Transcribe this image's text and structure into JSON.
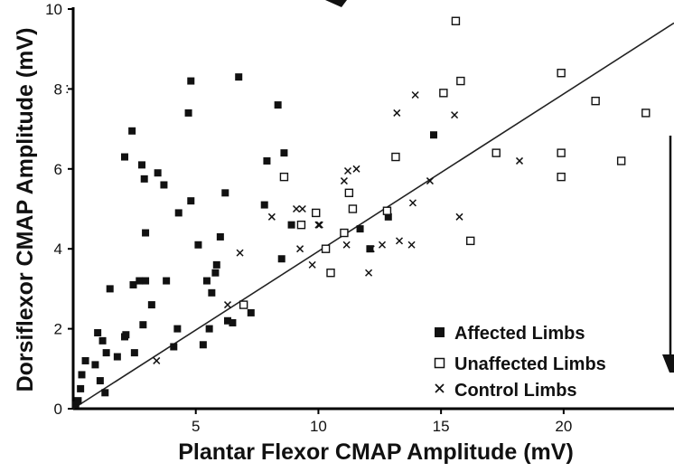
{
  "chart_data": {
    "type": "scatter",
    "title": "",
    "xlabel": "Plantar Flexor CMAP Amplitude (mV)",
    "ylabel": "Dorsiflexor CMAP Amplitude (mV)",
    "xlim": [
      0,
      24.5
    ],
    "ylim": [
      0,
      10
    ],
    "xticks": [
      5,
      10,
      15,
      20
    ],
    "yticks": [
      0,
      2,
      4,
      6,
      8,
      10
    ],
    "grid": false,
    "legend_position": "bottom-right",
    "series": [
      {
        "name": "Affected Limbs",
        "marker": "filled-square",
        "color": "#111111",
        "points": [
          [
            0.1,
            0.1
          ],
          [
            0.2,
            0.2
          ],
          [
            0.3,
            0.5
          ],
          [
            0.35,
            0.85
          ],
          [
            0.5,
            1.2
          ],
          [
            0.9,
            1.1
          ],
          [
            1.0,
            1.9
          ],
          [
            1.1,
            0.7
          ],
          [
            1.2,
            1.7
          ],
          [
            1.3,
            0.4
          ],
          [
            1.35,
            1.4
          ],
          [
            1.5,
            3.0
          ],
          [
            1.8,
            1.3
          ],
          [
            2.1,
            1.8
          ],
          [
            2.15,
            1.85
          ],
          [
            2.1,
            6.3
          ],
          [
            2.4,
            6.95
          ],
          [
            2.45,
            3.1
          ],
          [
            2.5,
            1.4
          ],
          [
            2.7,
            3.2
          ],
          [
            2.8,
            6.1
          ],
          [
            2.85,
            2.1
          ],
          [
            2.95,
            3.2
          ],
          [
            2.95,
            4.4
          ],
          [
            2.9,
            5.75
          ],
          [
            3.2,
            2.6
          ],
          [
            3.45,
            5.9
          ],
          [
            3.7,
            5.6
          ],
          [
            3.8,
            3.2
          ],
          [
            4.1,
            1.55
          ],
          [
            4.25,
            2.0
          ],
          [
            4.3,
            4.9
          ],
          [
            4.7,
            7.4
          ],
          [
            4.8,
            8.2
          ],
          [
            4.8,
            5.2
          ],
          [
            5.1,
            4.1
          ],
          [
            5.3,
            1.6
          ],
          [
            5.45,
            3.2
          ],
          [
            5.55,
            2.0
          ],
          [
            5.65,
            2.9
          ],
          [
            5.8,
            3.4
          ],
          [
            5.85,
            3.6
          ],
          [
            6.0,
            4.3
          ],
          [
            6.2,
            5.4
          ],
          [
            6.3,
            2.2
          ],
          [
            6.5,
            2.15
          ],
          [
            6.75,
            8.3
          ],
          [
            7.25,
            2.4
          ],
          [
            7.8,
            5.1
          ],
          [
            7.9,
            6.2
          ],
          [
            8.35,
            7.6
          ],
          [
            8.5,
            3.75
          ],
          [
            8.6,
            6.4
          ],
          [
            8.9,
            4.6
          ],
          [
            11.7,
            4.5
          ],
          [
            12.1,
            4.0
          ],
          [
            12.85,
            4.8
          ],
          [
            14.7,
            6.85
          ]
        ]
      },
      {
        "name": "Unaffected Limbs",
        "marker": "open-square",
        "color": "#111111",
        "points": [
          [
            6.95,
            2.6
          ],
          [
            8.6,
            5.8
          ],
          [
            9.3,
            4.6
          ],
          [
            9.9,
            4.9
          ],
          [
            10.3,
            4.0
          ],
          [
            10.5,
            3.4
          ],
          [
            11.05,
            4.4
          ],
          [
            11.25,
            5.4
          ],
          [
            11.4,
            5.0
          ],
          [
            12.8,
            4.95
          ],
          [
            13.15,
            6.3
          ],
          [
            15.1,
            7.9
          ],
          [
            15.6,
            9.7
          ],
          [
            15.8,
            8.2
          ],
          [
            16.2,
            4.2
          ],
          [
            17.25,
            6.4
          ],
          [
            19.9,
            8.4
          ],
          [
            19.9,
            6.4
          ],
          [
            19.9,
            5.8
          ],
          [
            21.3,
            7.7
          ],
          [
            22.35,
            6.2
          ],
          [
            23.35,
            7.4
          ]
        ]
      },
      {
        "name": "Control Limbs",
        "marker": "x",
        "color": "#111111",
        "points": [
          [
            3.4,
            1.2
          ],
          [
            6.3,
            2.6
          ],
          [
            6.8,
            3.9
          ],
          [
            8.1,
            4.8
          ],
          [
            9.1,
            5.0
          ],
          [
            9.25,
            4.0
          ],
          [
            9.35,
            5.0
          ],
          [
            9.75,
            3.6
          ],
          [
            10.0,
            4.6
          ],
          [
            10.05,
            4.6
          ],
          [
            11.05,
            5.7
          ],
          [
            11.15,
            4.1
          ],
          [
            11.2,
            5.95
          ],
          [
            11.55,
            6.0
          ],
          [
            12.05,
            3.4
          ],
          [
            12.15,
            4.0
          ],
          [
            12.6,
            4.1
          ],
          [
            13.2,
            7.4
          ],
          [
            13.3,
            4.2
          ],
          [
            13.8,
            4.1
          ],
          [
            13.85,
            5.15
          ],
          [
            13.95,
            7.85
          ],
          [
            14.55,
            5.7
          ],
          [
            15.55,
            7.35
          ],
          [
            15.75,
            4.8
          ],
          [
            18.2,
            6.2
          ]
        ]
      }
    ],
    "reference_line": {
      "label": "",
      "points": [
        [
          0,
          0
        ],
        [
          24.5,
          9.65
        ]
      ]
    },
    "decorations": {
      "colon_mark": ":"
    }
  }
}
